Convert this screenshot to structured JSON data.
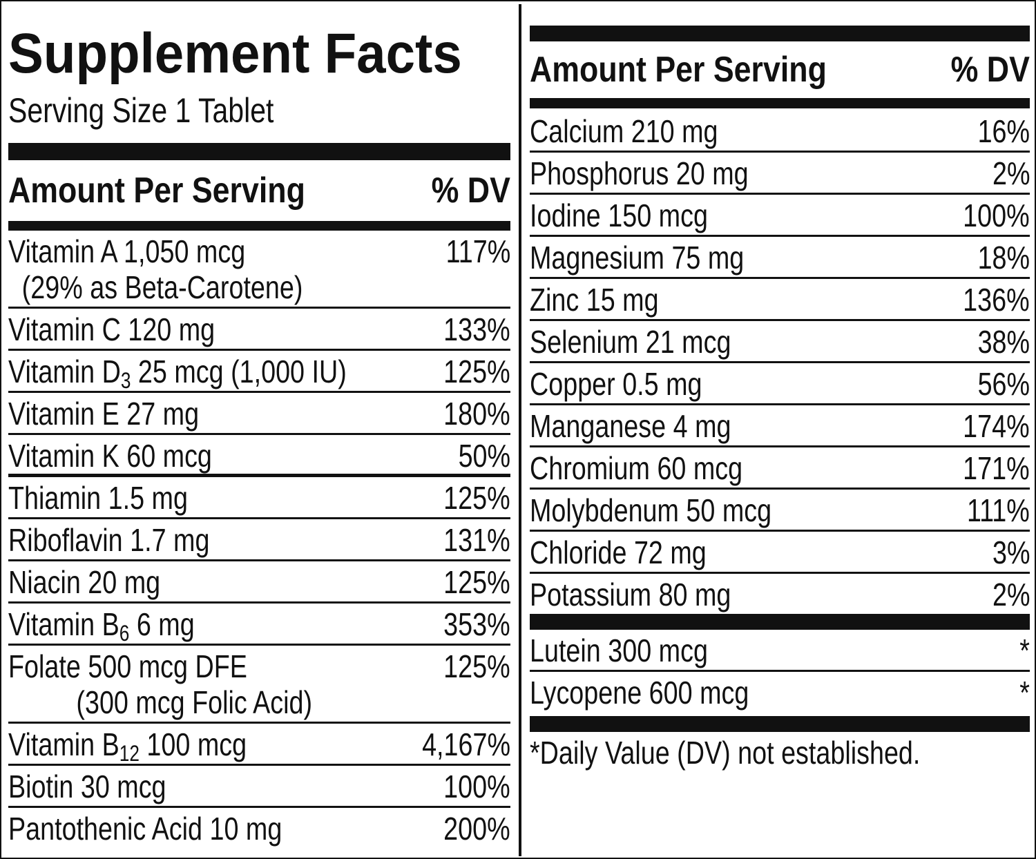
{
  "header": {
    "title": "Supplement Facts",
    "serving_size": "Serving Size 1 Tablet"
  },
  "left": {
    "columns": [
      "Amount Per Serving",
      "% DV"
    ],
    "rows": [
      {
        "label": "Vitamin A 1,050 mcg",
        "note": "(29% as Beta-Carotene)",
        "dv": "117%"
      },
      {
        "label": "Vitamin C 120 mg",
        "dv": "133%"
      },
      {
        "label": "Vitamin D",
        "sub": "3",
        "label_rest": " 25 mcg (1,000 IU)",
        "dv": "125%"
      },
      {
        "label": "Vitamin E 27 mg",
        "dv": "180%"
      },
      {
        "label": "Vitamin K 60 mcg",
        "dv": "50%"
      },
      {
        "label": "Thiamin 1.5 mg",
        "dv": "125%"
      },
      {
        "label": "Riboflavin 1.7 mg",
        "dv": "131%"
      },
      {
        "label": "Niacin 20 mg",
        "dv": "125%"
      },
      {
        "label": "Vitamin B",
        "sub": "6",
        "label_rest": " 6 mg",
        "dv": "353%"
      },
      {
        "label": "Folate 500 mcg DFE",
        "note": "(300 mcg Folic Acid)",
        "dv": "125%"
      },
      {
        "label": "Vitamin B",
        "sub": "12",
        "label_rest": " 100 mcg",
        "dv": "4,167%"
      },
      {
        "label": "Biotin 30 mcg",
        "dv": "100%"
      },
      {
        "label": "Pantothenic Acid 10 mg",
        "dv": "200%"
      }
    ]
  },
  "right": {
    "columns": [
      "Amount Per Serving",
      "% DV"
    ],
    "rows": [
      {
        "label": "Calcium 210 mg",
        "dv": "16%"
      },
      {
        "label": "Phosphorus 20 mg",
        "dv": "2%"
      },
      {
        "label": "Iodine 150 mcg",
        "dv": "100%"
      },
      {
        "label": "Magnesium 75 mg",
        "dv": "18%"
      },
      {
        "label": "Zinc 15 mg",
        "dv": "136%"
      },
      {
        "label": "Selenium 21 mcg",
        "dv": "38%"
      },
      {
        "label": "Copper 0.5 mg",
        "dv": "56%"
      },
      {
        "label": "Manganese 4 mg",
        "dv": "174%"
      },
      {
        "label": "Chromium 60 mcg",
        "dv": "171%"
      },
      {
        "label": "Molybdenum 50 mcg",
        "dv": "111%"
      },
      {
        "label": "Chloride 72 mg",
        "dv": "3%"
      },
      {
        "label": "Potassium 80 mg",
        "dv": "2%"
      }
    ],
    "other_rows": [
      {
        "label": "Lutein 300 mcg",
        "dv": "*"
      },
      {
        "label": "Lycopene 600 mcg",
        "dv": "*"
      }
    ],
    "footnote": "*Daily Value (DV) not established."
  }
}
